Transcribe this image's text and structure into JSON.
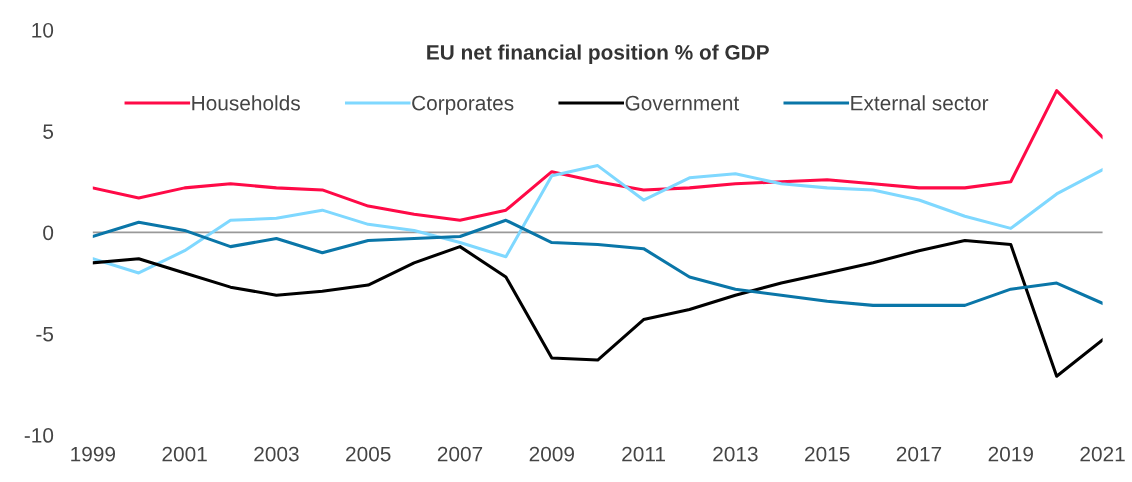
{
  "chart_data": {
    "type": "line",
    "title": "EU net financial position % of GDP",
    "x": [
      1999,
      2000,
      2001,
      2002,
      2003,
      2004,
      2005,
      2006,
      2007,
      2008,
      2009,
      2010,
      2011,
      2012,
      2013,
      2014,
      2015,
      2016,
      2017,
      2018,
      2019,
      2020,
      2021
    ],
    "series": [
      {
        "name": "Households",
        "color": "#ff0a47",
        "values": [
          2.2,
          1.7,
          2.2,
          2.4,
          2.2,
          2.1,
          1.3,
          0.9,
          0.6,
          1.1,
          3.0,
          2.5,
          2.1,
          2.2,
          2.4,
          2.5,
          2.6,
          2.4,
          2.2,
          2.2,
          2.5,
          7.0,
          4.7
        ]
      },
      {
        "name": "Corporates",
        "color": "#7fd8ff",
        "values": [
          -1.3,
          -2.0,
          -0.9,
          0.6,
          0.7,
          1.1,
          0.4,
          0.1,
          -0.5,
          -1.2,
          2.8,
          3.3,
          1.6,
          2.7,
          2.9,
          2.4,
          2.2,
          2.1,
          1.6,
          0.8,
          0.2,
          1.9,
          3.1
        ]
      },
      {
        "name": "Government",
        "color": "#000000",
        "values": [
          -1.5,
          -1.3,
          -2.0,
          -2.7,
          -3.1,
          -2.9,
          -2.6,
          -1.5,
          -0.7,
          -2.2,
          -6.2,
          -6.3,
          -4.3,
          -3.8,
          -3.1,
          -2.5,
          -2.0,
          -1.5,
          -0.9,
          -0.4,
          -0.6,
          -7.1,
          -5.3
        ]
      },
      {
        "name": "External sector",
        "color": "#0a76a8",
        "values": [
          -0.2,
          0.5,
          0.1,
          -0.7,
          -0.3,
          -1.0,
          -0.4,
          -0.3,
          -0.2,
          0.6,
          -0.5,
          -0.6,
          -0.8,
          -2.2,
          -2.8,
          -3.1,
          -3.4,
          -3.6,
          -3.6,
          -3.6,
          -2.8,
          -2.5,
          -3.5
        ]
      }
    ],
    "xlim": [
      1999,
      2021
    ],
    "xticks": [
      1999,
      2001,
      2003,
      2005,
      2007,
      2009,
      2011,
      2013,
      2015,
      2017,
      2019,
      2021
    ],
    "ylim": [
      -10,
      10
    ],
    "yticks": [
      -10,
      -5,
      0,
      5,
      10
    ],
    "ref_lines": [
      {
        "axis": "y",
        "value": 0,
        "color": "#999999"
      }
    ],
    "grid": false,
    "legend": "top",
    "marker": "none",
    "line_style": "solid"
  }
}
